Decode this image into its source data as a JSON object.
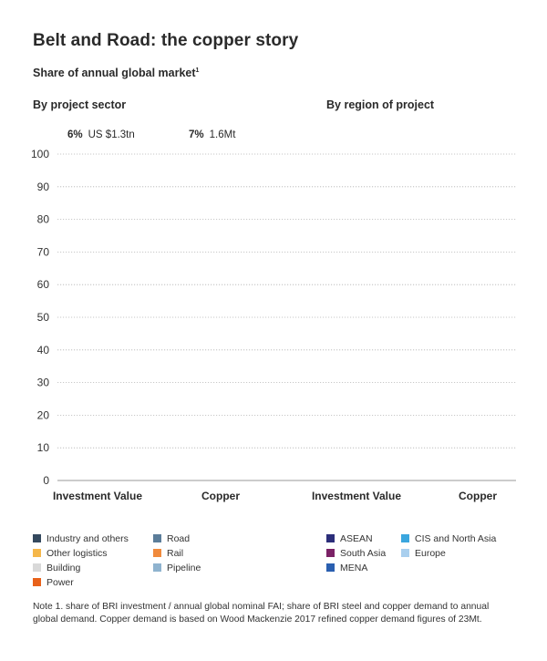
{
  "title": "Belt and Road: the copper story",
  "subtitle": "Share of annual global market",
  "subtitle_note_mark": "1",
  "panels": {
    "left": {
      "heading": "By project sector",
      "totals": [
        {
          "pct": "6%",
          "value": "US $1.3tn"
        },
        {
          "pct": "7%",
          "value": "1.6Mt"
        }
      ]
    },
    "right": {
      "heading": "By region of project"
    }
  },
  "legend_sector": [
    {
      "label": "Industry and others",
      "color": "#34495e"
    },
    {
      "label": "Road",
      "color": "#5b7d9a"
    },
    {
      "label": "Other logistics",
      "color": "#f5b74a"
    },
    {
      "label": "Rail",
      "color": "#f08a3c"
    },
    {
      "label": "Building",
      "color": "#d9d9d9"
    },
    {
      "label": "Pipeline",
      "color": "#8fb3cf"
    },
    {
      "label": "Power",
      "color": "#e8611a"
    }
  ],
  "legend_region": [
    {
      "label": "ASEAN",
      "color": "#2c2e7a"
    },
    {
      "label": "CIS and North Asia",
      "color": "#3aa6de"
    },
    {
      "label": "South Asia",
      "color": "#7b2266"
    },
    {
      "label": "Europe",
      "color": "#a9cfee"
    },
    {
      "label": "MENA",
      "color": "#2a5fb0"
    }
  ],
  "note": "Note 1. share of BRI investment / annual global nominal FAI; share of BRI steel and copper demand to annual global demand. Copper demand is based on Wood Mackenzie 2017 refined copper demand figures of 23Mt.",
  "chart_data": {
    "type": "bar",
    "title": "Belt and Road: the copper story",
    "subtitle": "Share of annual global market",
    "ylim": [
      0,
      100
    ],
    "yticks": [
      0,
      10,
      20,
      30,
      40,
      50,
      60,
      70,
      80,
      90,
      100
    ],
    "panels": [
      {
        "name": "By project sector",
        "categories": [
          "Investment Value",
          "Copper"
        ]
      },
      {
        "name": "By region of project",
        "categories": [
          "Investment Value",
          "Copper"
        ]
      }
    ],
    "categories": [
      "Investment Value",
      "Copper",
      "Investment Value",
      "Copper"
    ],
    "grid": true
  }
}
